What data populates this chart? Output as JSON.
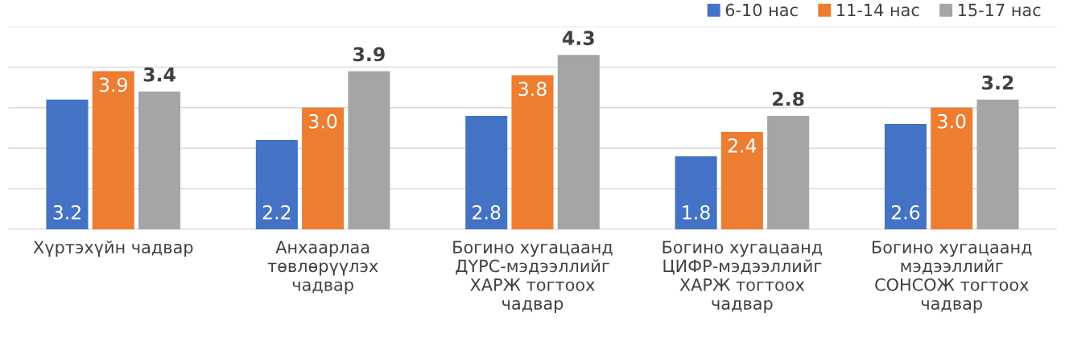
{
  "chart_data": {
    "type": "bar",
    "categories": [
      "Хүртэхүйн чадвар",
      "Анхаарлаа\nтөвлөрүүлэх\nчадвар",
      "Богино хугацаанд\nДҮРС-мэдээллийг\nХАРЖ тогтоох\nчадвар",
      "Богино хугацаанд\nЦИФР-мэдээллийг\nХАРЖ тогтоох\nчадвар",
      "Богино хугацаанд\nмэдээллийг\nСОНСОЖ тогтоох\nчадвар"
    ],
    "series": [
      {
        "name": "6-10 нас",
        "color": "#4472c4",
        "values": [
          3.2,
          2.2,
          2.8,
          1.8,
          2.6
        ],
        "value_labels": [
          "3.2",
          "2.2",
          "2.8",
          "1.8",
          "2.6"
        ]
      },
      {
        "name": "11-14 нас",
        "color": "#ed7d31",
        "values": [
          3.9,
          3.0,
          3.8,
          2.4,
          3.0
        ],
        "value_labels": [
          "3.9",
          "3.0",
          "3.8",
          "2.4",
          "3.0"
        ]
      },
      {
        "name": "15-17 нас",
        "color": "#a5a5a5",
        "values": [
          3.4,
          3.9,
          4.3,
          2.8,
          3.2
        ],
        "value_labels": [
          "3.4",
          "3.9",
          "4.3",
          "2.8",
          "3.2"
        ]
      }
    ],
    "ylim": [
      0,
      5
    ],
    "yticks": [
      {
        "value": 0,
        "label": null
      },
      {
        "value": 1,
        "label": null
      },
      {
        "value": 2,
        "label": null
      },
      {
        "value": 3,
        "label": null
      },
      {
        "value": 4,
        "label": null
      },
      {
        "value": 5,
        "label": null
      }
    ],
    "grid": "y",
    "legend": "top right"
  }
}
